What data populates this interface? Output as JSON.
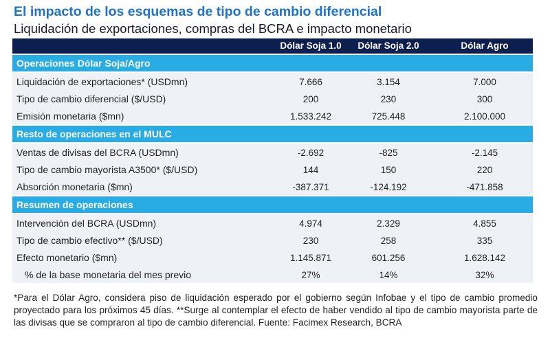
{
  "header": {
    "title": "El impacto de los esquemas de tipo de cambio diferencial",
    "subtitle": "Liquidación de exportaciones, compras del BCRA e impacto monetario"
  },
  "table": {
    "columns": [
      "Dólar Soja 1.0",
      "Dólar Soja 2.0",
      "Dólar Agro"
    ],
    "sections": [
      {
        "title": "Operaciones Dólar Soja/Agro",
        "rows": [
          {
            "label": "Liquidación de exportaciones* (USDmn)",
            "values": [
              "7.666",
              "3.154",
              "7.000"
            ]
          },
          {
            "label": "Tipo de cambio diferencial ($/USD)",
            "values": [
              "200",
              "230",
              "300"
            ]
          },
          {
            "label": "Emisión monetaria ($mn)",
            "values": [
              "1.533.242",
              "725.448",
              "2.100.000"
            ]
          }
        ]
      },
      {
        "title": "Resto de operaciones en el MULC",
        "rows": [
          {
            "label": "Ventas de divisas del BCRA (USDmn)",
            "values": [
              "-2.692",
              "-825",
              "-2.145"
            ]
          },
          {
            "label": "Tipo de cambio mayorista A3500* ($/USD)",
            "values": [
              "144",
              "150",
              "220"
            ]
          },
          {
            "label": "Absorción monetaria ($mn)",
            "values": [
              "-387.371",
              "-124.192",
              "-471.858"
            ]
          }
        ]
      },
      {
        "title": "Resumen de operaciones",
        "rows": [
          {
            "label": "Intervención del BCRA (USDmn)",
            "values": [
              "4.974",
              "2.329",
              "4.855"
            ]
          },
          {
            "label": "Tipo de cambio efectivo** ($/USD)",
            "values": [
              "230",
              "258",
              "335"
            ]
          },
          {
            "label": "Efecto monetario ($mn)",
            "values": [
              "1.145.871",
              "601.256",
              "1.628.142"
            ]
          },
          {
            "label": "% de la base monetaria del mes previo",
            "values": [
              "27%",
              "14%",
              "32%"
            ]
          }
        ]
      }
    ]
  },
  "footnote": "*Para el Dólar Agro, considera piso de liquidación esperado por el gobierno según Infobae y el tipo de cambio promedio proyectado para los próximos 45 días. **Surge al contemplar el efecto de haber vendido al tipo de cambio mayorista parte de las divisas que se compraron al tipo de cambio diferencial. Fuente: Facimex Research, BCRA"
}
